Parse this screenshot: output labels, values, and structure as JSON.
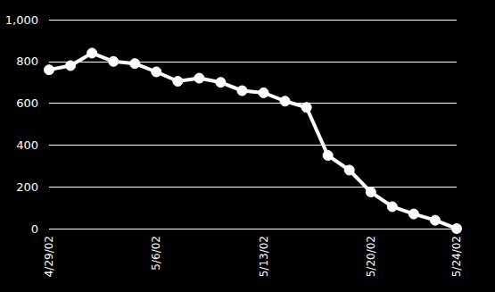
{
  "chart_data": {
    "type": "line",
    "categories": [
      "4/29/02",
      null,
      null,
      null,
      null,
      "5/6/02",
      null,
      null,
      null,
      null,
      "5/13/02",
      null,
      null,
      null,
      null,
      "5/20/02",
      null,
      null,
      null,
      "5/24/02"
    ],
    "values": [
      760,
      780,
      840,
      800,
      790,
      750,
      705,
      720,
      700,
      660,
      650,
      610,
      580,
      350,
      280,
      175,
      105,
      70,
      40,
      0
    ],
    "color": "#ffffff",
    "marker": "circle",
    "ylim": [
      0,
      1000
    ],
    "yticks": [
      0,
      200,
      400,
      600,
      800,
      {
        "value": 1000,
        "label": "1,000"
      }
    ],
    "grid": true
  }
}
